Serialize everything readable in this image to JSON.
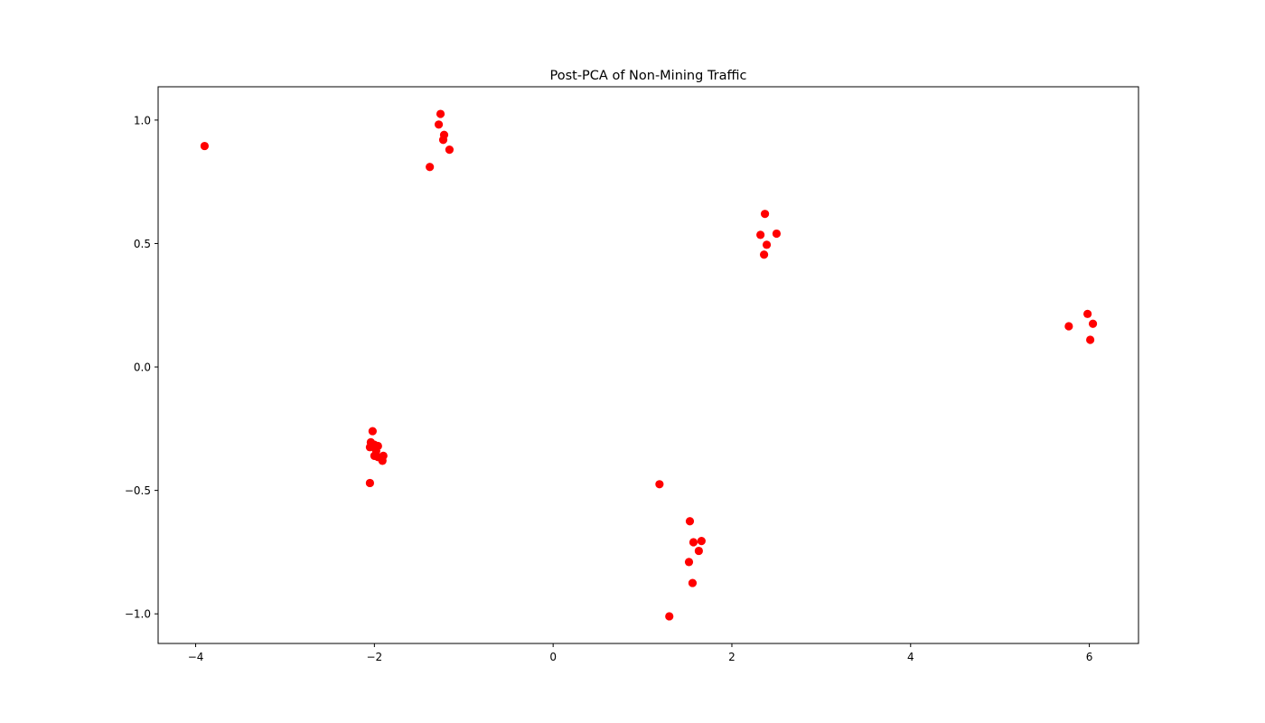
{
  "chart_data": {
    "type": "scatter",
    "title": "Post-PCA of Non-Mining Traffic",
    "xlabel": "",
    "ylabel": "",
    "xlim": [
      -4.42,
      6.55
    ],
    "ylim": [
      -1.12,
      1.135
    ],
    "xticks": [
      -4,
      -2,
      0,
      2,
      4,
      6
    ],
    "xtick_labels": [
      "−4",
      "−2",
      "0",
      "2",
      "4",
      "6"
    ],
    "yticks": [
      -1.0,
      -0.5,
      0.0,
      0.5,
      1.0
    ],
    "ytick_labels": [
      "−1.0",
      "−0.5",
      "0.0",
      "0.5",
      "1.0"
    ],
    "grid": false,
    "marker_color": "#ff0000",
    "points": [
      {
        "x": -3.9,
        "y": 0.895
      },
      {
        "x": -1.26,
        "y": 1.025
      },
      {
        "x": -1.28,
        "y": 0.982
      },
      {
        "x": -1.22,
        "y": 0.94
      },
      {
        "x": -1.23,
        "y": 0.92
      },
      {
        "x": -1.16,
        "y": 0.88
      },
      {
        "x": -1.38,
        "y": 0.81
      },
      {
        "x": -2.02,
        "y": -0.26
      },
      {
        "x": -2.04,
        "y": -0.305
      },
      {
        "x": -2.05,
        "y": -0.325
      },
      {
        "x": -2.0,
        "y": -0.315
      },
      {
        "x": -1.96,
        "y": -0.32
      },
      {
        "x": -1.98,
        "y": -0.34
      },
      {
        "x": -2.0,
        "y": -0.36
      },
      {
        "x": -1.96,
        "y": -0.365
      },
      {
        "x": -1.9,
        "y": -0.36
      },
      {
        "x": -1.91,
        "y": -0.38
      },
      {
        "x": -2.05,
        "y": -0.47
      },
      {
        "x": 2.37,
        "y": 0.62
      },
      {
        "x": 2.5,
        "y": 0.54
      },
      {
        "x": 2.32,
        "y": 0.535
      },
      {
        "x": 2.39,
        "y": 0.495
      },
      {
        "x": 2.36,
        "y": 0.455
      },
      {
        "x": 5.98,
        "y": 0.215
      },
      {
        "x": 6.04,
        "y": 0.175
      },
      {
        "x": 5.77,
        "y": 0.165
      },
      {
        "x": 6.01,
        "y": 0.11
      },
      {
        "x": 1.19,
        "y": -0.475
      },
      {
        "x": 1.53,
        "y": -0.625
      },
      {
        "x": 1.66,
        "y": -0.705
      },
      {
        "x": 1.57,
        "y": -0.71
      },
      {
        "x": 1.63,
        "y": -0.745
      },
      {
        "x": 1.52,
        "y": -0.79
      },
      {
        "x": 1.56,
        "y": -0.875
      },
      {
        "x": 1.3,
        "y": -1.01
      }
    ]
  }
}
